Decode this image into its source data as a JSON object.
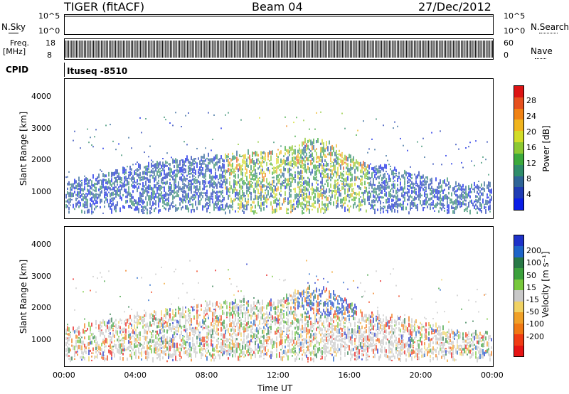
{
  "header": {
    "left": "TIGER (fitACF)",
    "center": "Beam 04",
    "right": "27/Dec/2012"
  },
  "housekeeping": {
    "nsky_label": "N.Sky",
    "nsky_scale_top": "10^5",
    "nsky_scale_bottom": "10^0",
    "nsearch_label": "N.Search",
    "nsearch_scale_top": "10^5",
    "nsearch_scale_bottom": "10^0",
    "freq_label_1": "Freq.",
    "freq_label_2": "[MHz]",
    "freq_top": "18",
    "freq_bottom": "8",
    "nave_label": "Nave",
    "nave_top": "60",
    "nave_bottom": "0",
    "cpid_label": "CPID",
    "cpid_value": "Ituseq -8510"
  },
  "chart_data": [
    {
      "type": "heatmap",
      "parameter": "power",
      "ylabel": "Slant Range [km]",
      "xlabel": "",
      "xlim": [
        0,
        24
      ],
      "ylim": [
        180,
        4550
      ],
      "yticks": [
        1000,
        2000,
        3000,
        4000
      ],
      "colorbar": {
        "label": "Power [dB]",
        "ticks": [
          "4",
          "8",
          "12",
          "16",
          "20",
          "24",
          "28"
        ],
        "colors": [
          "#0a1ee6",
          "#1f3cb4",
          "#2e6496",
          "#2f8c6a",
          "#3ca93c",
          "#8cc832",
          "#d2dc28",
          "#f0b41e",
          "#f08214",
          "#e6501e",
          "#dc1414"
        ]
      }
    },
    {
      "type": "heatmap",
      "parameter": "velocity",
      "ylabel": "Slant Range [km]",
      "xlabel": "Time UT",
      "xlim": [
        0,
        24
      ],
      "ylim": [
        180,
        4550
      ],
      "yticks": [
        1000,
        2000,
        3000,
        4000
      ],
      "xticks": [
        "00:00",
        "04:00",
        "08:00",
        "12:00",
        "16:00",
        "20:00",
        "00:00"
      ],
      "colorbar": {
        "label": "Velocity [m s⁻¹]",
        "ticks": [
          "200",
          "100",
          "50",
          "15",
          "-15",
          "-50",
          "-100",
          "-200"
        ],
        "colors": [
          "#1e32c8",
          "#1e64c8",
          "#287846",
          "#3ca03c",
          "#78c83c",
          "#c8c8c8",
          "#f0d264",
          "#f0a028",
          "#f07814",
          "#f03c14",
          "#e61414"
        ]
      }
    }
  ]
}
